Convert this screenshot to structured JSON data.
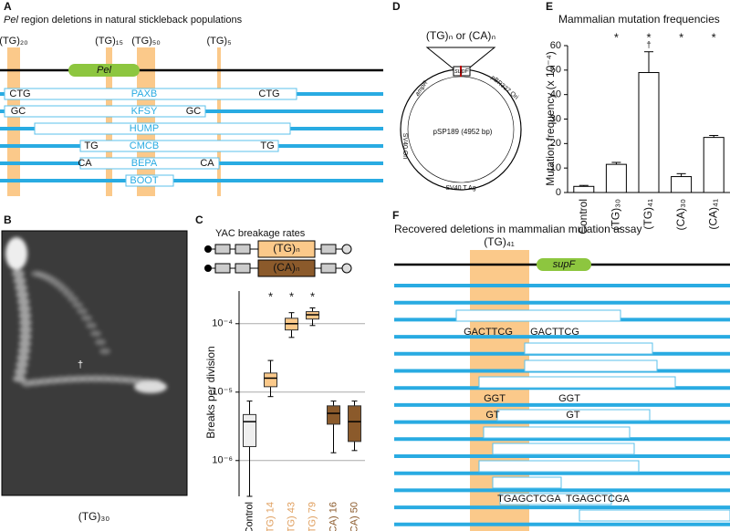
{
  "panels": {
    "A": {
      "letter": "A",
      "title_em": "Pel",
      "title": " region deletions in natural stickleback populations",
      "repeats": [
        "(TG)₂₀",
        "(TG)₁₅",
        "(TG)₅₀",
        "(TG)₅"
      ],
      "gene": "Pel",
      "populations": [
        {
          "name": "PAXB",
          "left": "CTG",
          "right": "CTG"
        },
        {
          "name": "KFSY",
          "left": "GC",
          "right": "GC"
        },
        {
          "name": "HUMP"
        },
        {
          "name": "CMCB",
          "left": "TG",
          "right": "TG"
        },
        {
          "name": "BEPA",
          "left": "CA",
          "right": "CA"
        },
        {
          "name": "BOOT"
        }
      ]
    },
    "B": {
      "letter": "B",
      "label": "(TG)₃₀",
      "mark": "†"
    },
    "C": {
      "letter": "C",
      "title": "YAC breakage rates",
      "constructs": [
        "(TG)ₙ",
        "(CA)ₙ"
      ],
      "chart": {
        "type": "box",
        "ylabel": "Breaks per division",
        "log": true,
        "grid": true,
        "ylim": [
          3e-07,
          0.0003
        ],
        "yticks": [
          {
            "value": 1e-06,
            "label": "10⁻⁶"
          },
          {
            "value": 1e-05,
            "label": "10⁻⁵"
          },
          {
            "value": 0.0001,
            "label": "10⁻⁴"
          }
        ],
        "categories": [
          "Control",
          "(TG) 14",
          "(TG) 43",
          "(TG) 79",
          "(CA) 16",
          "(CA) 50"
        ],
        "colors": [
          "#efefef",
          "#fbc98a",
          "#fbc98a",
          "#fbc98a",
          "#8b5a2b",
          "#8b5a2b"
        ],
        "label_colors": [
          "#000000",
          "#e0a060",
          "#e0a060",
          "#e0a060",
          "#8b5a2b",
          "#8b5a2b"
        ],
        "boxes": [
          [
            3e-07,
            1.6e-06,
            3.7e-06,
            4.7e-06,
            7.4e-06
          ],
          [
            8.6e-06,
            1.2e-05,
            1.6e-05,
            1.9e-05,
            2.9e-05
          ],
          [
            6.3e-05,
            8.1e-05,
            0.0001,
            0.00012,
            0.000145
          ],
          [
            9.4e-05,
            0.000117,
            0.000135,
            0.00015,
            0.00017
          ],
          [
            1.3e-06,
            3.4e-06,
            4.9e-06,
            6.3e-06,
            7.4e-06
          ],
          [
            1.4e-06,
            1.9e-06,
            3.7e-06,
            6.3e-06,
            7.4e-06
          ]
        ],
        "stars": [
          null,
          "*",
          "*",
          "*",
          null,
          null
        ]
      }
    },
    "D": {
      "letter": "D",
      "insert": "(TG)ₙ or (CA)ₙ",
      "plasmid": "pSP189 (4952 bp)",
      "features": [
        "ampR",
        "supF",
        "pBR327 Ori",
        "SV40 Ori",
        "SV40 T Ag"
      ]
    },
    "E": {
      "letter": "E",
      "title": "Mammalian mutation frequencies",
      "chart": {
        "type": "bar",
        "ylabel": "Mutation frequency (x 10⁻⁴)",
        "ylim": [
          0,
          60
        ],
        "yticks": [
          0,
          10,
          20,
          30,
          40,
          50,
          60
        ],
        "categories": [
          "Control",
          "(TG)₃₀",
          "(TG)₄₁",
          "(CA)₃₀",
          "(CA)₄₁"
        ],
        "values": [
          2.5,
          11.5,
          49,
          6.5,
          22.5
        ],
        "errors": [
          0.4,
          0.8,
          8.5,
          1.2,
          0.8
        ],
        "color": "#ffffff",
        "stars": [
          null,
          "*",
          "*",
          "*",
          "*"
        ],
        "daggers": [
          null,
          null,
          "†",
          null,
          null
        ]
      }
    },
    "F": {
      "letter": "F",
      "title": "Recovered deletions in mammalian mutation assay",
      "repeat": "(TG)₄₁",
      "gene": "supF",
      "junctions": [
        {
          "left": "GACTTCG",
          "right": "GACTTCG"
        },
        {
          "left": "GGT",
          "right": "GGT"
        },
        {
          "left": "GT",
          "right": "GT"
        },
        {
          "left": "TGAGCTCGA",
          "right": "TGAGCTCGA"
        }
      ]
    }
  }
}
